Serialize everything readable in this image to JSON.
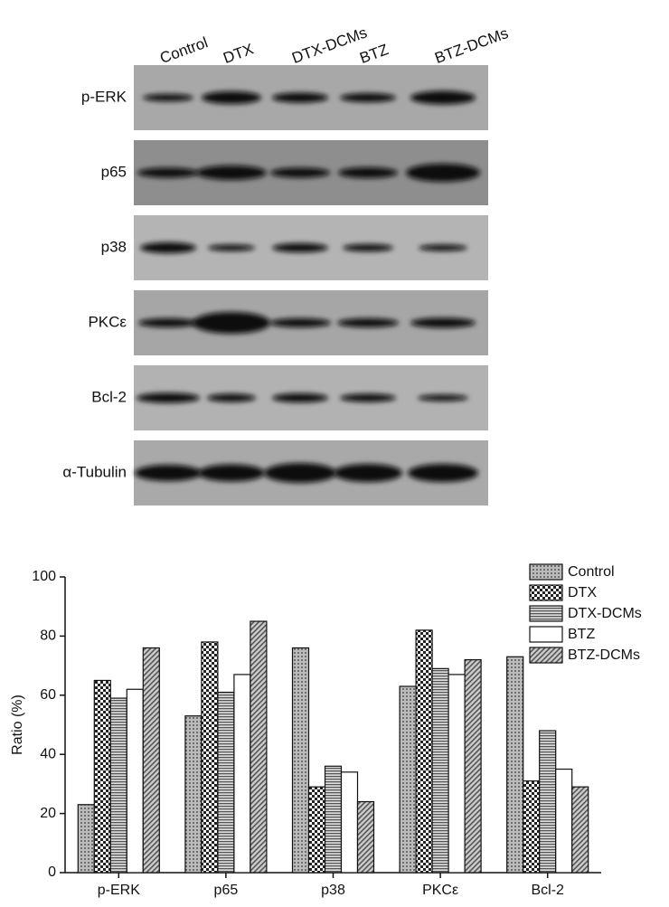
{
  "blot": {
    "lanes": [
      "Control",
      "DTX",
      "DTX-DCMs",
      "BTZ",
      "BTZ-DCMs"
    ],
    "proteins": [
      "p-ERK",
      "p65",
      "p38",
      "PKCε",
      "Bcl-2",
      "α-Tubulin"
    ]
  },
  "chart_data": {
    "type": "bar",
    "ylabel": "Ratio (%)",
    "categories": [
      "p-ERK",
      "p65",
      "p38",
      "PKCε",
      "Bcl-2"
    ],
    "series": [
      {
        "name": "Control",
        "color": "#888888",
        "pattern": "dots",
        "values": [
          23,
          53,
          76,
          63,
          73
        ]
      },
      {
        "name": "DTX",
        "color": "#222222",
        "pattern": "checker",
        "values": [
          65,
          78,
          29,
          82,
          31
        ]
      },
      {
        "name": "DTX-DCMs",
        "color": "#777777",
        "pattern": "hlines",
        "values": [
          59,
          61,
          36,
          69,
          48
        ]
      },
      {
        "name": "BTZ",
        "color": "#ffffff",
        "pattern": "none",
        "values": [
          62,
          67,
          34,
          67,
          35
        ]
      },
      {
        "name": "BTZ-DCMs",
        "color": "#666666",
        "pattern": "diagonal",
        "values": [
          76,
          85,
          24,
          72,
          29
        ]
      }
    ],
    "ylim": [
      0,
      100
    ],
    "yticks": [
      0,
      20,
      40,
      60,
      80,
      100
    ],
    "legend": "upper right"
  }
}
